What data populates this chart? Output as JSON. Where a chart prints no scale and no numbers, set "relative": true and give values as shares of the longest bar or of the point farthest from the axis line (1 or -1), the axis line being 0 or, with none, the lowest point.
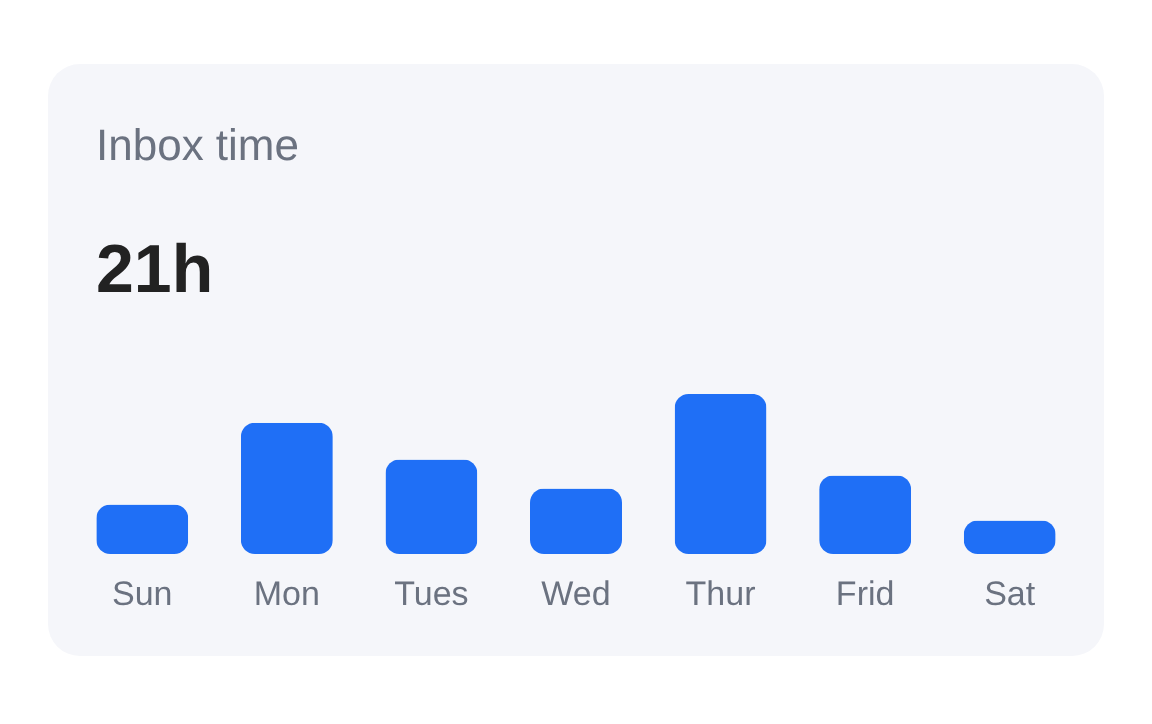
{
  "chart_data": {
    "type": "bar",
    "title": "Inbox time",
    "subtitle": "21h",
    "relative": true,
    "categories": [
      "Sun",
      "Mon",
      "Tues",
      "Wed",
      "Thur",
      "Frid",
      "Sat"
    ],
    "values": [
      0.31,
      0.82,
      0.59,
      0.41,
      1,
      0.49,
      0.21
    ],
    "color": "#1f6ff6"
  }
}
